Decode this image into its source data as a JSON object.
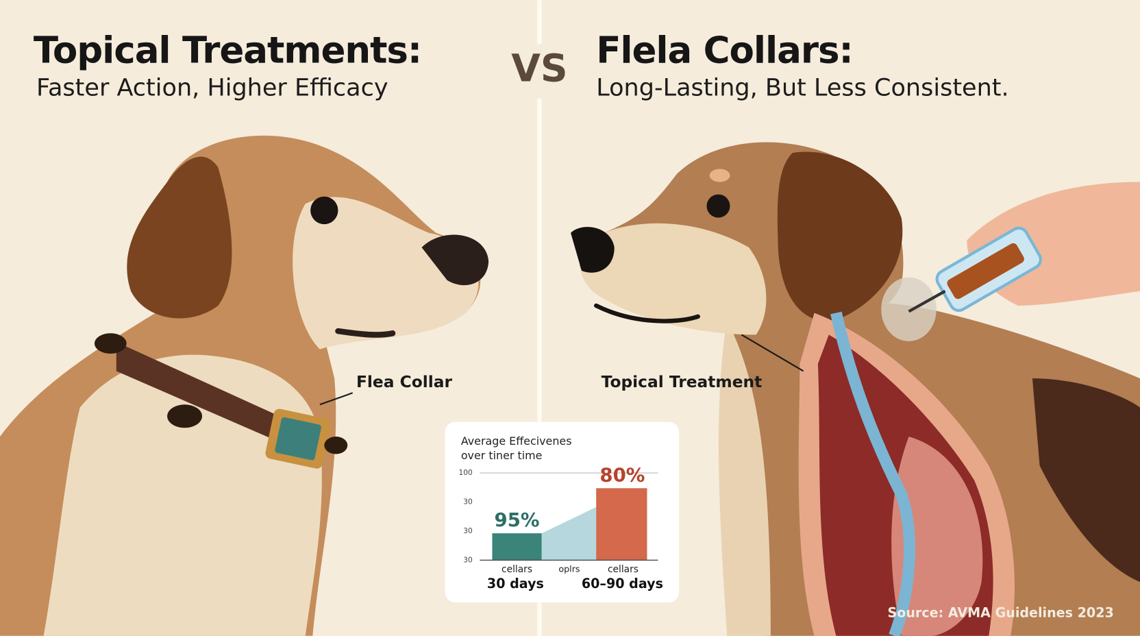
{
  "left": {
    "title": "Topical Treatments:",
    "subtitle": "Faster Action, Higher Efficacy",
    "callout": "Flea Collar"
  },
  "vs": "VS",
  "right": {
    "title": "Flela Collars:",
    "subtitle": "Long-Lasting, But Less Consistent.",
    "callout": "Topical Treatment"
  },
  "inset": {
    "title_lines": [
      "Average Effecivenes",
      "over tiner time"
    ],
    "axis_labels": [
      "100",
      "30",
      "30",
      "30"
    ],
    "bar_labels": [
      "95%",
      "80%"
    ],
    "x_labels": [
      "cellars",
      "oplrs",
      "cellars"
    ],
    "periods": [
      "30 days",
      "60–90 days"
    ]
  },
  "source": "Source: AVMA Guidelines 2023"
}
